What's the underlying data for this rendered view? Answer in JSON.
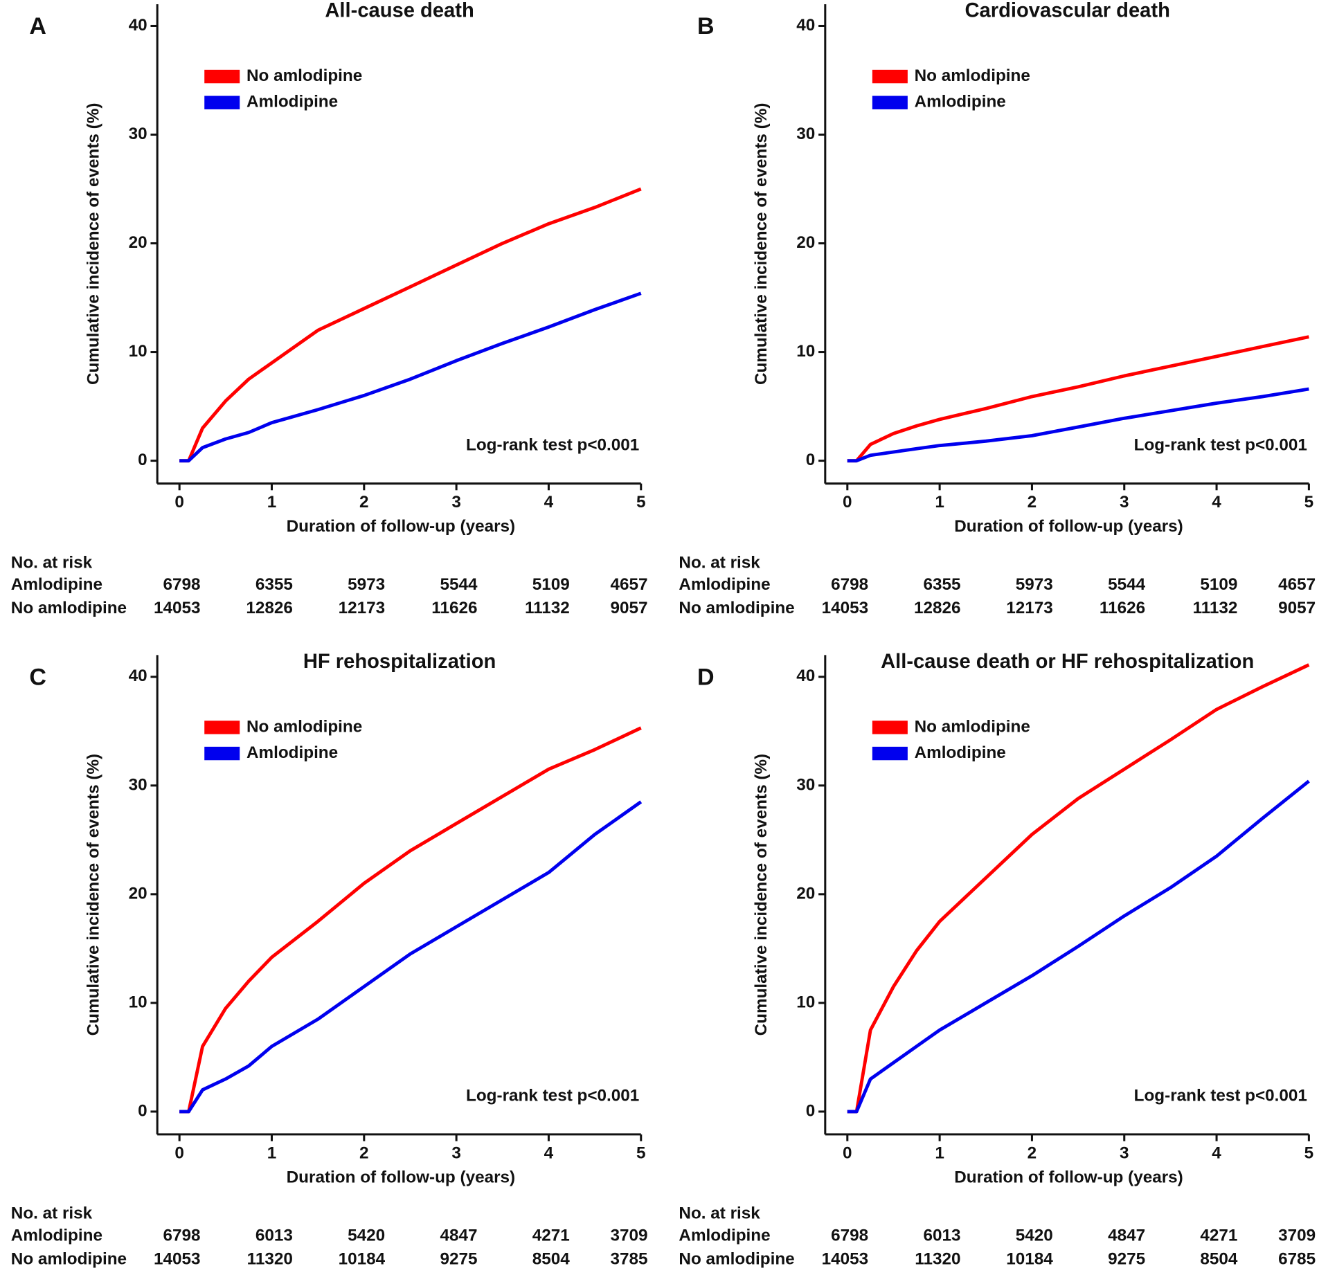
{
  "chart_data": [
    {
      "type": "line",
      "panel": "A",
      "title": "All-cause death",
      "x_label": "Duration of follow-up (years)",
      "y_label": "Cumulative incidence of events (%)",
      "annotation": "Log-rank test p<0.001",
      "xlim": [
        -0.24,
        5
      ],
      "ylim": [
        -2.1,
        42
      ],
      "xticks": [
        0,
        1,
        2,
        3,
        4,
        5
      ],
      "yticks": [
        0,
        10,
        20,
        30,
        40
      ],
      "x": [
        0,
        0.1,
        0.25,
        0.5,
        0.75,
        1,
        1.5,
        2,
        2.5,
        3,
        3.5,
        4,
        4.5,
        5
      ],
      "series": [
        {
          "name": "No amlodipine",
          "color": "#ff0000",
          "values": [
            0,
            0,
            3,
            5.5,
            7.5,
            9,
            12,
            14,
            16,
            18,
            20,
            21.8,
            23.3,
            25
          ]
        },
        {
          "name": "Amlodipine",
          "color": "#0000ee",
          "values": [
            0,
            0,
            1.2,
            2,
            2.6,
            3.5,
            4.7,
            6,
            7.5,
            9.2,
            10.8,
            12.3,
            13.9,
            15.4
          ]
        }
      ],
      "risk_table": {
        "title": "No. at risk",
        "rows": [
          {
            "name": "Amlodipine",
            "values": [
              6798,
              6355,
              5973,
              5544,
              5109,
              4657
            ]
          },
          {
            "name": "No amlodipine",
            "values": [
              14053,
              12826,
              12173,
              11626,
              11132,
              9057
            ]
          }
        ]
      }
    },
    {
      "type": "line",
      "panel": "B",
      "title": "Cardiovascular death",
      "x_label": "Duration of follow-up (years)",
      "y_label": "Cumulative incidence of events (%)",
      "annotation": "Log-rank test p<0.001",
      "xlim": [
        -0.24,
        5
      ],
      "ylim": [
        -2.1,
        42
      ],
      "xticks": [
        0,
        1,
        2,
        3,
        4,
        5
      ],
      "yticks": [
        0,
        10,
        20,
        30,
        40
      ],
      "x": [
        0,
        0.1,
        0.25,
        0.5,
        0.75,
        1,
        1.5,
        2,
        2.5,
        3,
        3.5,
        4,
        4.5,
        5
      ],
      "series": [
        {
          "name": "No amlodipine",
          "color": "#ff0000",
          "values": [
            0,
            0,
            1.5,
            2.5,
            3.2,
            3.8,
            4.8,
            5.9,
            6.8,
            7.8,
            8.7,
            9.6,
            10.5,
            11.4
          ]
        },
        {
          "name": "Amlodipine",
          "color": "#0000ee",
          "values": [
            0,
            0,
            0.5,
            0.8,
            1.1,
            1.4,
            1.8,
            2.3,
            3.1,
            3.9,
            4.6,
            5.3,
            5.9,
            6.6
          ]
        }
      ],
      "risk_table": {
        "title": "No. at risk",
        "rows": [
          {
            "name": "Amlodipine",
            "values": [
              6798,
              6355,
              5973,
              5544,
              5109,
              4657
            ]
          },
          {
            "name": "No amlodipine",
            "values": [
              14053,
              12826,
              12173,
              11626,
              11132,
              9057
            ]
          }
        ]
      }
    },
    {
      "type": "line",
      "panel": "C",
      "title": "HF rehospitalization",
      "x_label": "Duration of follow-up (years)",
      "y_label": "Cumulative incidence of events (%)",
      "annotation": "Log-rank test p<0.001",
      "xlim": [
        -0.24,
        5
      ],
      "ylim": [
        -2.1,
        42
      ],
      "xticks": [
        0,
        1,
        2,
        3,
        4,
        5
      ],
      "yticks": [
        0,
        10,
        20,
        30,
        40
      ],
      "x": [
        0,
        0.1,
        0.25,
        0.5,
        0.75,
        1,
        1.5,
        2,
        2.5,
        3,
        3.5,
        4,
        4.5,
        5
      ],
      "series": [
        {
          "name": "No amlodipine",
          "color": "#ff0000",
          "values": [
            0,
            0,
            6,
            9.5,
            12,
            14.2,
            17.5,
            21,
            24,
            26.5,
            29,
            31.5,
            33.3,
            35.3
          ]
        },
        {
          "name": "Amlodipine",
          "color": "#0000ee",
          "values": [
            0,
            0,
            2,
            3,
            4.2,
            6,
            8.5,
            11.5,
            14.5,
            17,
            19.5,
            22,
            25.5,
            28.5
          ]
        }
      ],
      "risk_table": {
        "title": "No. at risk",
        "rows": [
          {
            "name": "Amlodipine",
            "values": [
              6798,
              6013,
              5420,
              4847,
              4271,
              3709
            ]
          },
          {
            "name": "No amlodipine",
            "values": [
              14053,
              11320,
              10184,
              9275,
              8504,
              3785
            ]
          }
        ]
      }
    },
    {
      "type": "line",
      "panel": "D",
      "title": "All-cause death or HF rehospitalization",
      "x_label": "Duration of follow-up (years)",
      "y_label": "Cumulative incidence of events (%)",
      "annotation": "Log-rank test p<0.001",
      "xlim": [
        -0.24,
        5
      ],
      "ylim": [
        -2.1,
        42
      ],
      "xticks": [
        0,
        1,
        2,
        3,
        4,
        5
      ],
      "yticks": [
        0,
        10,
        20,
        30,
        40
      ],
      "x": [
        0,
        0.1,
        0.25,
        0.5,
        0.75,
        1,
        1.5,
        2,
        2.5,
        3,
        3.5,
        4,
        4.5,
        5
      ],
      "series": [
        {
          "name": "No amlodipine",
          "color": "#ff0000",
          "values": [
            0,
            0,
            7.5,
            11.5,
            14.8,
            17.5,
            21.5,
            25.5,
            28.8,
            31.5,
            34.2,
            37,
            39.1,
            41.1
          ]
        },
        {
          "name": "Amlodipine",
          "color": "#0000ee",
          "values": [
            0,
            0,
            3,
            4.5,
            6,
            7.5,
            10,
            12.5,
            15.2,
            18,
            20.6,
            23.5,
            27,
            30.4
          ]
        }
      ],
      "risk_table": {
        "title": "No. at risk",
        "rows": [
          {
            "name": "Amlodipine",
            "values": [
              6798,
              6013,
              5420,
              4847,
              4271,
              3709
            ]
          },
          {
            "name": "No amlodipine",
            "values": [
              14053,
              11320,
              10184,
              9275,
              8504,
              6785
            ]
          }
        ]
      }
    }
  ]
}
